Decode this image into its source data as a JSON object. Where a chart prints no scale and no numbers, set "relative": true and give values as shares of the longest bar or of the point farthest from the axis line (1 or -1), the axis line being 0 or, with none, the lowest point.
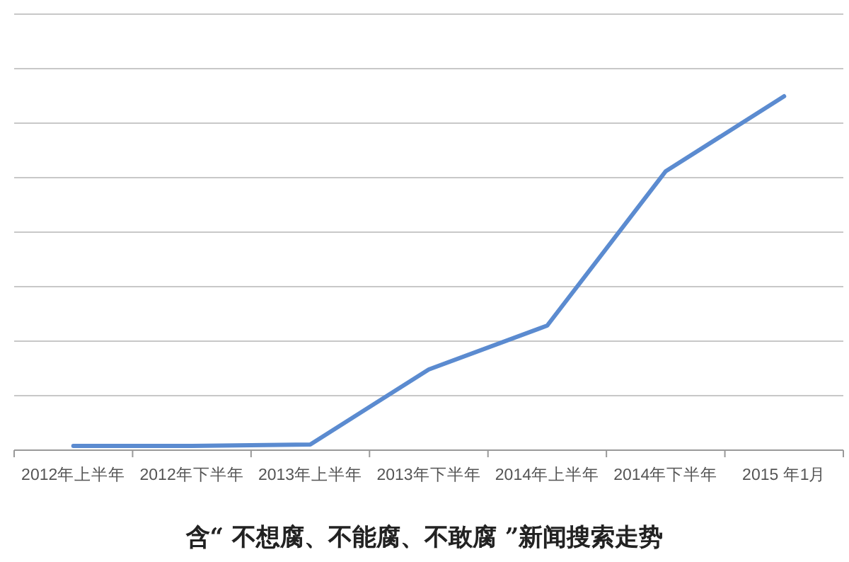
{
  "chart_data": {
    "type": "line",
    "title": "含“ 不想腐、不能腐、不敢腐 ”新闻搜索走势",
    "relative": true,
    "grid": "y",
    "marker": "none",
    "line_style": "solid",
    "categories": [
      "2012年上半年",
      "2012年下半年",
      "2013年上半年",
      "2013年下半年",
      "2014年上半年",
      "2014年下半年",
      "2015 年1月"
    ],
    "series": [
      {
        "color": "#5b8bd0",
        "values": [
          0.012,
          0.012,
          0.016,
          0.228,
          0.352,
          0.788,
          1
        ]
      }
    ]
  }
}
